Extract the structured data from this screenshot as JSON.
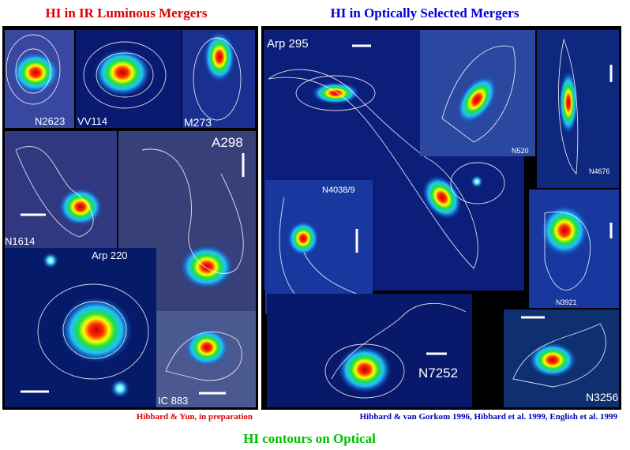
{
  "headings": {
    "left": "HI in IR Luminous Mergers",
    "right": "HI in Optically Selected Mergers"
  },
  "panels": [
    {
      "label": "N2623"
    },
    {
      "label": "VV114"
    },
    {
      "label": "M273"
    },
    {
      "label": "A298"
    },
    {
      "label": "N1614"
    },
    {
      "label": "Arp 220"
    },
    {
      "label": "IC 883"
    },
    {
      "label": "Arp 295"
    },
    {
      "label": "N520"
    },
    {
      "label": "N4676"
    },
    {
      "label": "N4038/9"
    },
    {
      "label": "N3921"
    },
    {
      "label": "N7252"
    },
    {
      "label": "N3256"
    }
  ],
  "credits": {
    "left": "Hibbard & Yun, in preparation",
    "right": "Hibbard & van Gorkom 1996, Hibbard et al. 1999, English et al. 1999"
  },
  "caption": "HI contours on Optical"
}
